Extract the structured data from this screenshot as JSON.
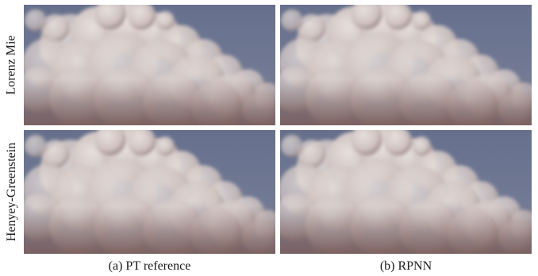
{
  "rows": [
    {
      "label": "Lorenz Mie"
    },
    {
      "label": "Henyey-Greenstein"
    }
  ],
  "columns": [
    {
      "caption": "(a) PT reference"
    },
    {
      "caption": "(b) RPNN"
    }
  ],
  "colors": {
    "sky": "#6c7793",
    "cloud_light": "#e9e2df",
    "cloud_shadow": "#7a5e5c"
  }
}
